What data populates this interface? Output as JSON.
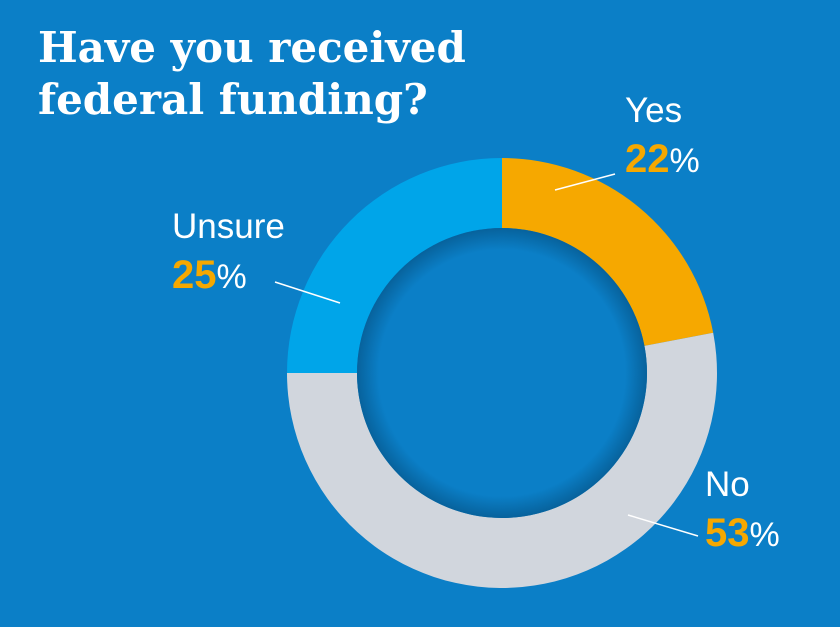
{
  "chart_data": {
    "type": "pie",
    "donut": true,
    "title": "Have you received federal funding?",
    "categories": [
      "Yes",
      "No",
      "Unsure"
    ],
    "values": [
      22,
      53,
      25
    ],
    "value_labels": [
      "22%",
      "53%",
      "25%"
    ],
    "colors": [
      "#f6a800",
      "#d1d6dd",
      "#00a5e9"
    ],
    "value_color": "#f6a800"
  }
}
